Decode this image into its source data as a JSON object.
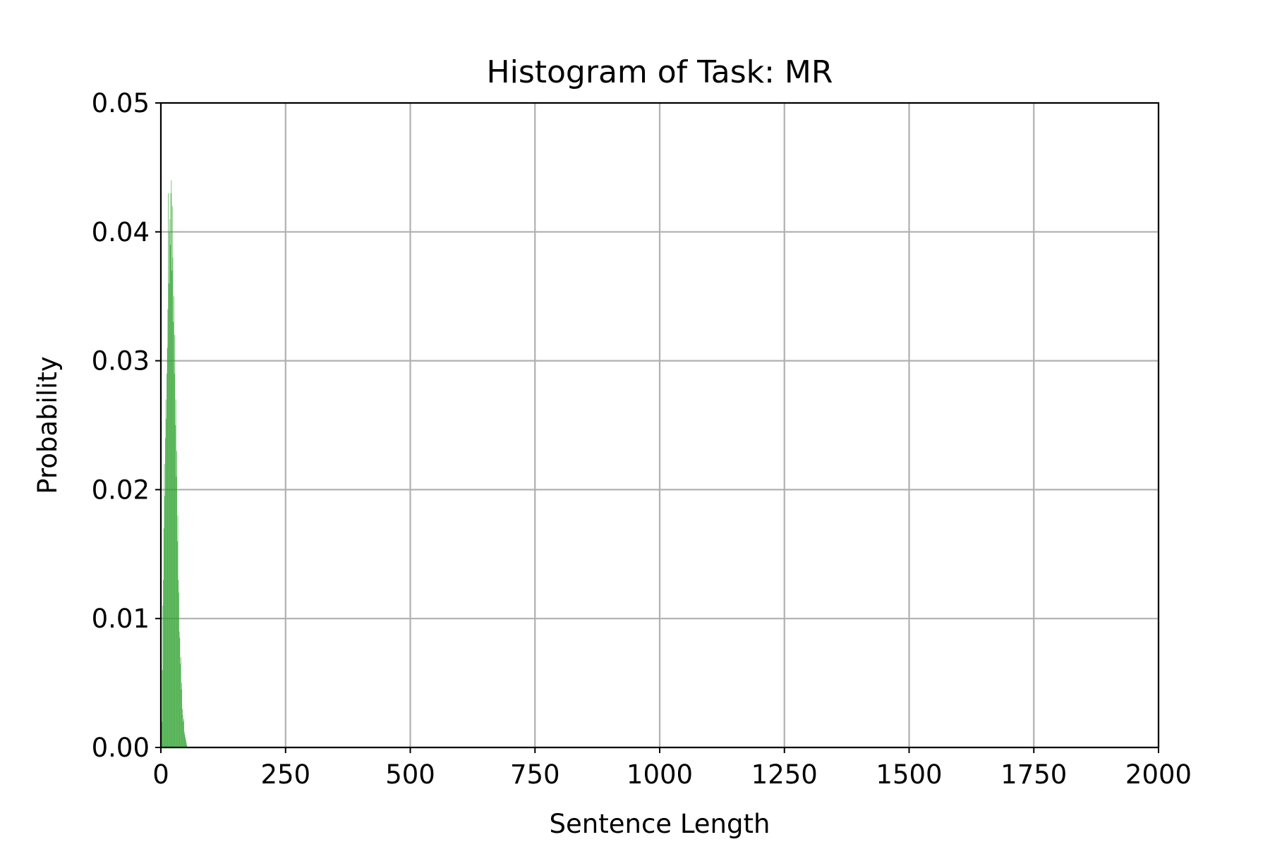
{
  "chart_data": {
    "type": "bar",
    "title": "Histogram of Task: MR",
    "xlabel": "Sentence Length",
    "ylabel": "Probability",
    "xlim": [
      0,
      2000
    ],
    "ylim": [
      0,
      0.05
    ],
    "x_ticks": [
      0,
      250,
      500,
      750,
      1000,
      1250,
      1500,
      1750,
      2000
    ],
    "x_tick_labels": [
      "0",
      "250",
      "500",
      "750",
      "1000",
      "1250",
      "1500",
      "1750",
      "2000"
    ],
    "y_ticks": [
      0,
      0.01,
      0.02,
      0.03,
      0.04,
      0.05
    ],
    "y_tick_labels": [
      "0.00",
      "0.01",
      "0.02",
      "0.03",
      "0.04",
      "0.05"
    ],
    "grid": true,
    "bar_color": "#2ca02c",
    "bin_width": 1,
    "x": [
      1,
      2,
      3,
      4,
      5,
      6,
      7,
      8,
      9,
      10,
      11,
      12,
      13,
      14,
      15,
      16,
      17,
      18,
      19,
      20,
      21,
      22,
      23,
      24,
      25,
      26,
      27,
      28,
      29,
      30,
      31,
      32,
      33,
      34,
      35,
      36,
      37,
      38,
      39,
      40,
      41,
      42,
      43,
      44,
      45,
      46,
      47,
      48,
      49,
      50,
      51,
      52
    ],
    "values": [
      0.0005,
      0.002,
      0.006,
      0.011,
      0.013,
      0.017,
      0.022,
      0.0195,
      0.024,
      0.027,
      0.0255,
      0.029,
      0.031,
      0.034,
      0.043,
      0.036,
      0.04,
      0.041,
      0.039,
      0.043,
      0.044,
      0.037,
      0.042,
      0.038,
      0.033,
      0.035,
      0.029,
      0.032,
      0.025,
      0.027,
      0.021,
      0.023,
      0.016,
      0.018,
      0.013,
      0.012,
      0.009,
      0.0085,
      0.0065,
      0.007,
      0.0045,
      0.005,
      0.003,
      0.0025,
      0.002,
      0.0022,
      0.0012,
      0.001,
      0.0008,
      0.0006,
      0.0004,
      0.0002
    ]
  }
}
